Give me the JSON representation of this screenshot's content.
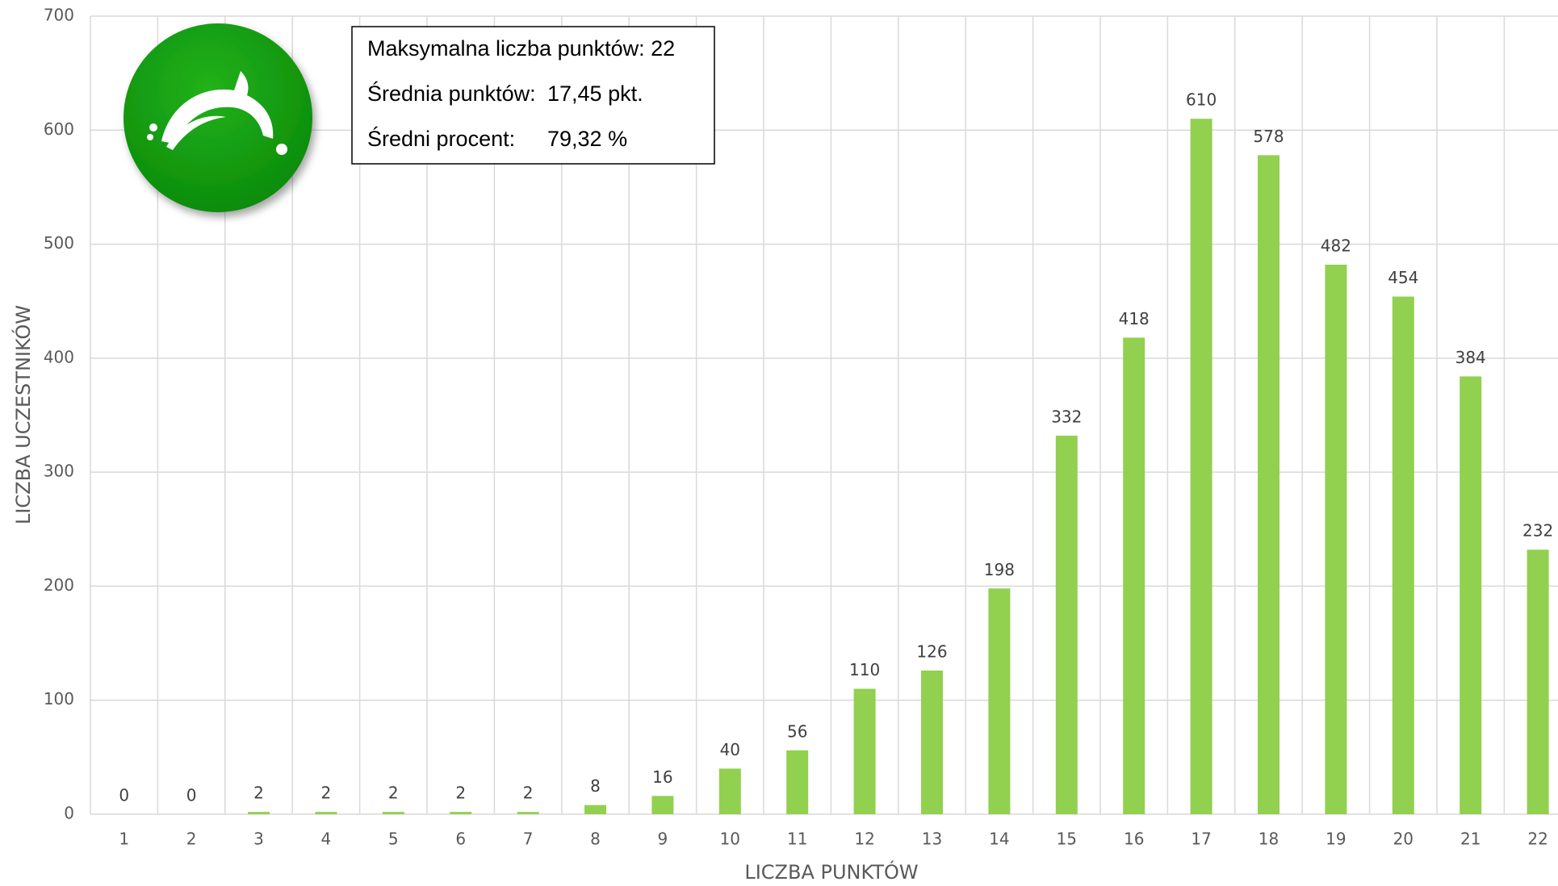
{
  "chart_data": {
    "type": "bar",
    "x_label": "LICZBA PUNKTÓW",
    "y_label": "LICZBA UCZESTNIKÓW",
    "categories": [
      "1",
      "2",
      "3",
      "4",
      "5",
      "6",
      "7",
      "8",
      "9",
      "10",
      "11",
      "12",
      "13",
      "14",
      "15",
      "16",
      "17",
      "18",
      "19",
      "20",
      "21",
      "22"
    ],
    "values": [
      0,
      0,
      2,
      2,
      2,
      2,
      2,
      8,
      16,
      40,
      56,
      110,
      126,
      198,
      332,
      418,
      610,
      578,
      482,
      454,
      384,
      232
    ],
    "color": "#92d050",
    "ylim": [
      0,
      700
    ],
    "yticks": [
      0,
      100,
      200,
      300,
      400,
      500,
      600,
      700
    ],
    "grid": true,
    "info_box": [
      {
        "label": "Maksymalna liczba punktów: 22"
      },
      {
        "label": "Średnia punktów:",
        "value": "17,45 pkt."
      },
      {
        "label": "Średni procent:",
        "value": "79,32 %"
      }
    ]
  }
}
